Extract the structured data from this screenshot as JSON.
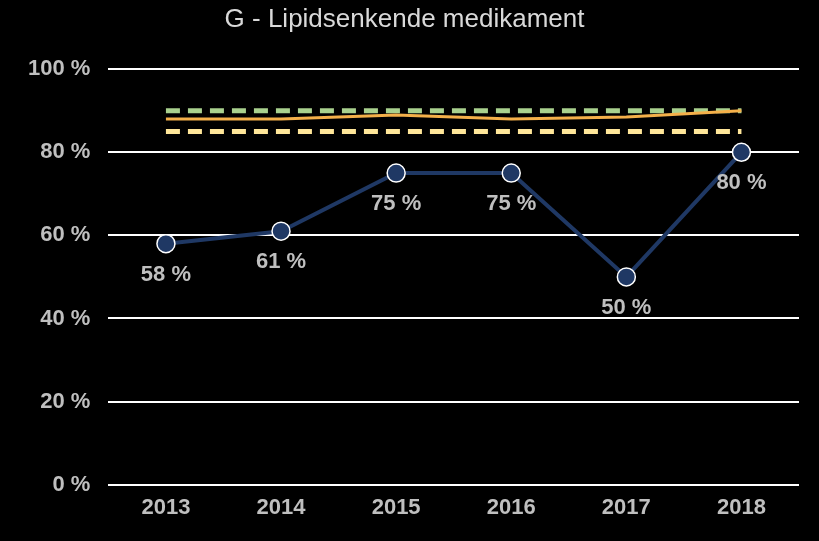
{
  "chart_data": {
    "type": "line",
    "title": "G - Lipidsenkende medikament",
    "categories": [
      "2013",
      "2014",
      "2015",
      "2016",
      "2017",
      "2018"
    ],
    "series": [
      {
        "color": "#a9d18e",
        "line_style": "dashed",
        "marker": "none",
        "values": [
          90,
          90,
          90,
          90,
          90,
          90
        ]
      },
      {
        "color": "#ffe699",
        "line_style": "dashed",
        "marker": "none",
        "values": [
          85,
          85,
          85,
          85,
          85,
          85
        ]
      },
      {
        "color": "#f4b04a",
        "line_style": "solid",
        "marker": "none",
        "values": [
          88,
          88,
          89,
          88,
          88.5,
          90
        ]
      },
      {
        "color": "#1f3864",
        "line_style": "solid",
        "marker": "circle",
        "values": [
          58,
          61,
          75,
          75,
          50,
          80
        ],
        "data_labels": true,
        "value_labels": [
          "58 %",
          "61 %",
          "75 %",
          "75 %",
          "50 %",
          "80 %"
        ]
      }
    ],
    "ylim": [
      0,
      100
    ],
    "yticks": [
      {
        "value": 0,
        "label": "0 %"
      },
      {
        "value": 20,
        "label": "20 %"
      },
      {
        "value": 40,
        "label": "40 %"
      },
      {
        "value": 60,
        "label": "60 %"
      },
      {
        "value": 80,
        "label": "80 %"
      },
      {
        "value": 100,
        "label": "100 %"
      }
    ],
    "grid": true
  }
}
